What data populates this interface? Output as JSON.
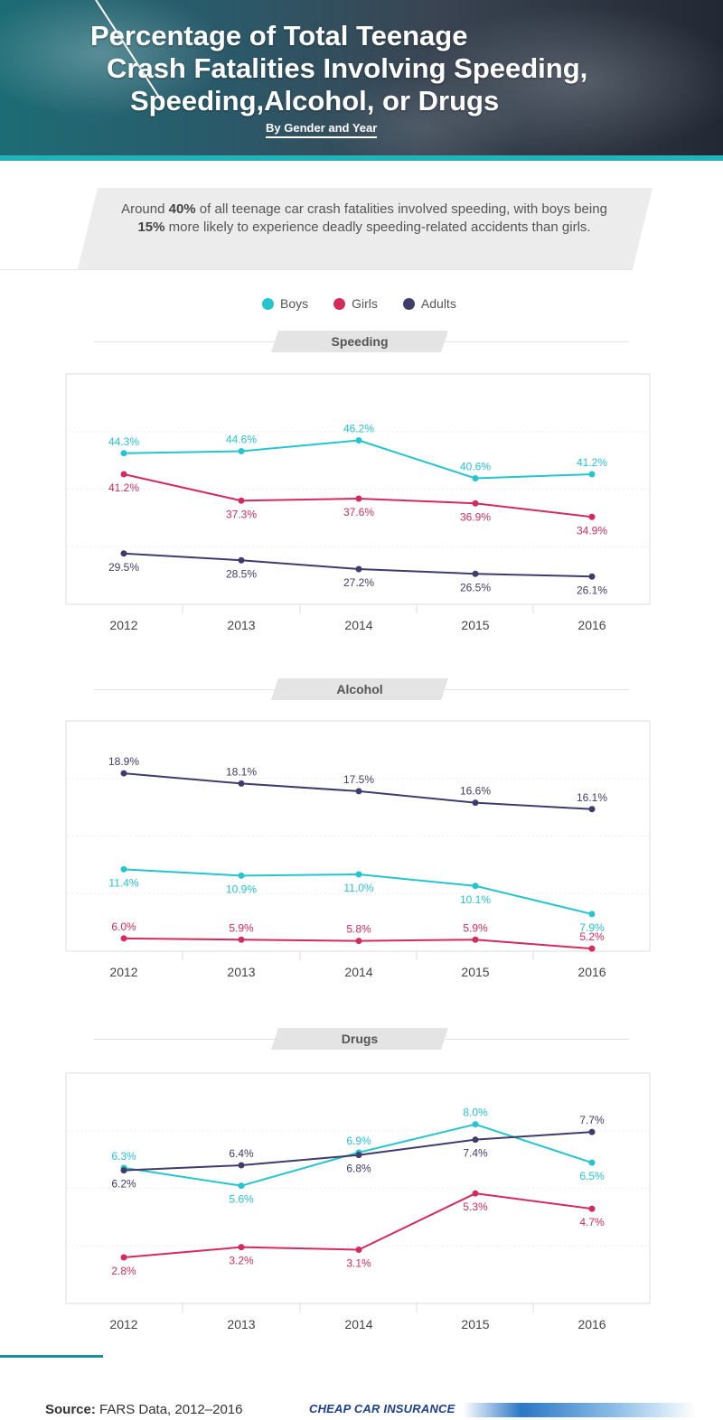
{
  "header": {
    "title_line1": "Percentage of Total Teenage",
    "title_line2": "Crash Fatalities Involving Speeding,",
    "title_line3": "Speeding,Alcohol, or Drugs",
    "subtitle": "By Gender and Year"
  },
  "intro": {
    "before1": "Around ",
    "bold1": "40%",
    "after1": " of all teenage car crash fatalities involved speeding, with boys being ",
    "bold2": "15%",
    "after2": " more likely to experience deadly speeding-related accidents than girls."
  },
  "legend": [
    {
      "label": "Boys",
      "color": "#25c4cf"
    },
    {
      "label": "Girls",
      "color": "#d42a5c"
    },
    {
      "label": "Adults",
      "color": "#3f3c6b"
    }
  ],
  "colors": {
    "boys": "#25c4cf",
    "girls": "#d42a5c",
    "adults": "#3f3c6b"
  },
  "chart_data": [
    {
      "type": "line",
      "title": "Speeding",
      "categories": [
        "2012",
        "2013",
        "2014",
        "2015",
        "2016"
      ],
      "series": [
        {
          "name": "Boys",
          "values": [
            44.3,
            44.6,
            46.2,
            40.6,
            41.2
          ],
          "labels": [
            "44.3%",
            "44.6%",
            "46.2%",
            "40.6%",
            "41.2%"
          ]
        },
        {
          "name": "Girls",
          "values": [
            41.2,
            37.3,
            37.6,
            36.9,
            34.9
          ],
          "labels": [
            "41.2%",
            "37.3%",
            "37.6%",
            "36.9%",
            "34.9%"
          ]
        },
        {
          "name": "Adults",
          "values": [
            29.5,
            28.5,
            27.2,
            26.5,
            26.1
          ],
          "labels": [
            "29.5%",
            "28.5%",
            "27.2%",
            "26.5%",
            "26.1%"
          ]
        }
      ],
      "ylim": [
        22,
        56
      ],
      "grid": true
    },
    {
      "type": "line",
      "title": "Alcohol",
      "categories": [
        "2012",
        "2013",
        "2014",
        "2015",
        "2016"
      ],
      "series": [
        {
          "name": "Boys",
          "values": [
            11.4,
            10.9,
            11.0,
            10.1,
            7.9
          ],
          "labels": [
            "11.4%",
            "10.9%",
            "11.0%",
            "10.1%",
            "7.9%"
          ]
        },
        {
          "name": "Girls",
          "values": [
            6.0,
            5.9,
            5.8,
            5.9,
            5.2
          ],
          "labels": [
            "6.0%",
            "5.9%",
            "5.8%",
            "5.9%",
            "5.2%"
          ]
        },
        {
          "name": "Adults",
          "values": [
            18.9,
            18.1,
            17.5,
            16.6,
            16.1
          ],
          "labels": [
            "18.9%",
            "18.1%",
            "17.5%",
            "16.6%",
            "16.1%"
          ]
        }
      ],
      "ylim": [
        5,
        23
      ],
      "grid": true
    },
    {
      "type": "line",
      "title": "Drugs",
      "categories": [
        "2012",
        "2013",
        "2014",
        "2015",
        "2016"
      ],
      "series": [
        {
          "name": "Boys",
          "values": [
            6.3,
            5.6,
            6.9,
            8.0,
            6.5
          ],
          "labels": [
            "6.3%",
            "5.6%",
            "6.9%",
            "8.0%",
            "6.5%"
          ]
        },
        {
          "name": "Girls",
          "values": [
            2.8,
            3.2,
            3.1,
            5.3,
            4.7
          ],
          "labels": [
            "2.8%",
            "3.2%",
            "3.1%",
            "5.3%",
            "4.7%"
          ]
        },
        {
          "name": "Adults",
          "values": [
            6.2,
            6.4,
            6.8,
            7.4,
            7.7
          ],
          "labels": [
            "6.2%",
            "6.4%",
            "6.8%",
            "7.4%",
            "7.7%"
          ]
        }
      ],
      "ylim": [
        1,
        10
      ],
      "grid": true
    }
  ],
  "footer": {
    "source_label": "Source:",
    "source_text": " FARS Data, 2012–2016",
    "brand": "CHEAP CAR INSURANCE"
  }
}
